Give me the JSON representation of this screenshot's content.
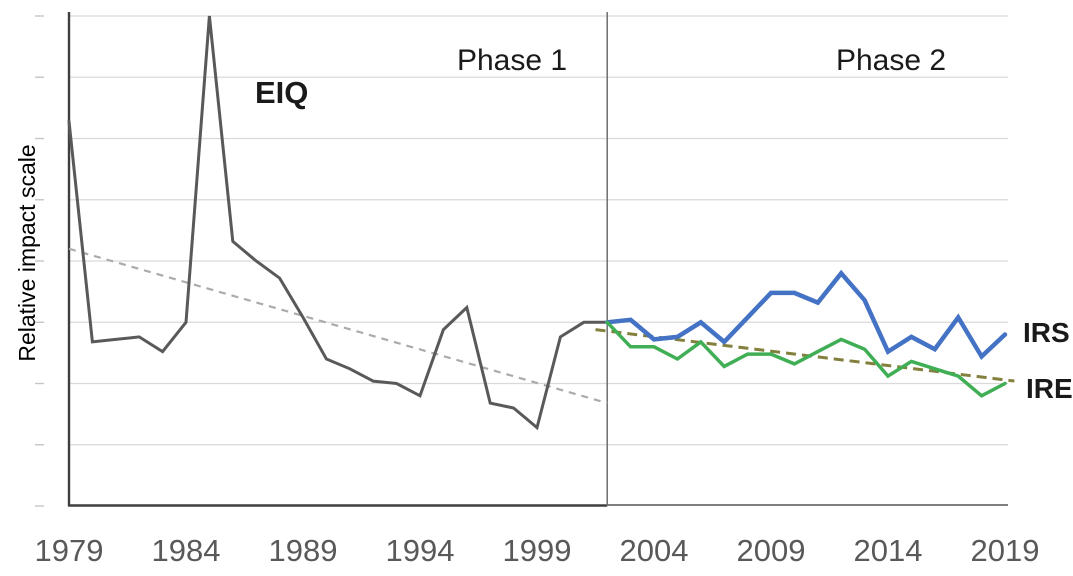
{
  "chart_data": {
    "type": "line",
    "title": "",
    "xlabel": "",
    "ylabel": "Relative impact scale",
    "x_tick_labels": [
      "1979",
      "1984",
      "1989",
      "1994",
      "1999",
      "2004",
      "2009",
      "2014",
      "2019"
    ],
    "xlim": [
      1979,
      2019.5
    ],
    "ylim": [
      0,
      100
    ],
    "y_axis": {
      "numeric_labels_visible": false,
      "gridline_values": [
        12.5,
        25,
        37.5,
        50,
        62.5,
        75,
        87.5,
        100
      ],
      "gridlines_on": true
    },
    "annotations": {
      "phase1": "Phase 1",
      "phase2": "Phase 2"
    },
    "phase_divider_year": 2002,
    "series": [
      {
        "name": "EIQ",
        "label": "EIQ",
        "color": "#595959",
        "line_width": 3,
        "x": [
          1979,
          1980,
          1981,
          1982,
          1983,
          1984,
          1985,
          1986,
          1987,
          1988,
          1989,
          1990,
          1991,
          1992,
          1993,
          1994,
          1995,
          1996,
          1997,
          1998,
          1999,
          2000,
          2001,
          2002
        ],
        "values": [
          78.5,
          33.5,
          34,
          34.5,
          31.5,
          37.5,
          100,
          54,
          50,
          46.5,
          38.5,
          30,
          28,
          25.5,
          25,
          22.5,
          36,
          40.5,
          21,
          20,
          16,
          34.5,
          37.5,
          37.5
        ]
      },
      {
        "name": "IRS",
        "label": "IRS",
        "color": "#4472C4",
        "line_width": 4.5,
        "x": [
          2002,
          2003,
          2004,
          2005,
          2006,
          2007,
          2008,
          2009,
          2010,
          2011,
          2012,
          2013,
          2014,
          2015,
          2016,
          2017,
          2018,
          2019
        ],
        "values": [
          37.5,
          38,
          34,
          34.5,
          37.5,
          33.5,
          38.5,
          43.5,
          43.5,
          41.5,
          47.5,
          42,
          31.5,
          34.5,
          32,
          38.5,
          30.5,
          35
        ]
      },
      {
        "name": "IRE",
        "label": "IRE",
        "color": "#3FAE54",
        "line_width": 3.5,
        "x": [
          2002,
          2003,
          2004,
          2005,
          2006,
          2007,
          2008,
          2009,
          2010,
          2011,
          2012,
          2013,
          2014,
          2015,
          2016,
          2017,
          2018,
          2019
        ],
        "values": [
          37.5,
          32.5,
          32.5,
          30,
          33.5,
          28.5,
          31,
          31,
          29,
          31.5,
          34,
          32,
          26.5,
          29.5,
          28,
          26.5,
          22.5,
          25
        ]
      }
    ],
    "trendlines": [
      {
        "name": "phase1-trend",
        "color": "#ABABAB",
        "style": "dashed",
        "x": [
          1979,
          2002
        ],
        "values": [
          52.5,
          21
        ]
      },
      {
        "name": "phase2-trend",
        "color": "#82803C",
        "style": "dashed",
        "x": [
          2001.5,
          2019.4
        ],
        "values": [
          36,
          25.5
        ]
      }
    ],
    "colors": {
      "gridline": "#D9D9D9",
      "axis": "#3F3F3F",
      "axis_phase2": "#7F7F7F",
      "divider": "#6E6E6E",
      "tick": "#C6C6C6"
    }
  }
}
